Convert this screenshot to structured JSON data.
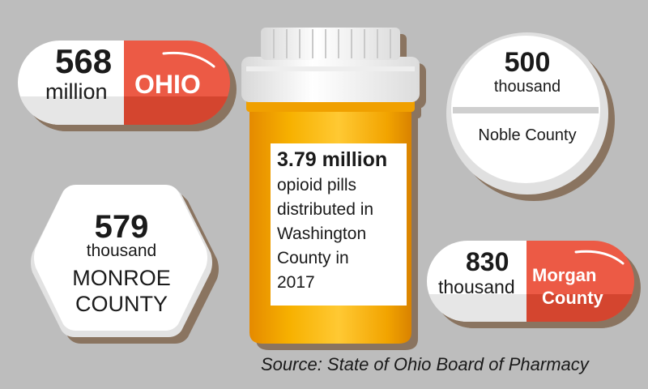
{
  "pills": {
    "ohio": {
      "number": "568",
      "unit": "million",
      "name": "OHIO"
    },
    "noble": {
      "number": "500",
      "unit": "thousand",
      "name": "Noble County"
    },
    "monroe": {
      "number": "579",
      "unit": "thousand",
      "name_line1": "MONROE",
      "name_line2": "COUNTY"
    },
    "morgan": {
      "number": "830",
      "unit": "thousand",
      "name_line1": "Morgan",
      "name_line2": "County"
    }
  },
  "bottle": {
    "headline": "3.79 million",
    "lines": [
      "opioid pills",
      "distributed in",
      "Washington",
      "County in",
      "2017"
    ]
  },
  "source": "Source: State of Ohio Board of Pharmacy",
  "colors": {
    "background": "#bdbdbd",
    "accent_red": "#ec5a45",
    "bottle_orange": "#f2a400",
    "shadow_brown": "#8a7460"
  },
  "icons": [
    "capsule-pill",
    "round-pill",
    "hexagon-pill",
    "pill-bottle"
  ]
}
